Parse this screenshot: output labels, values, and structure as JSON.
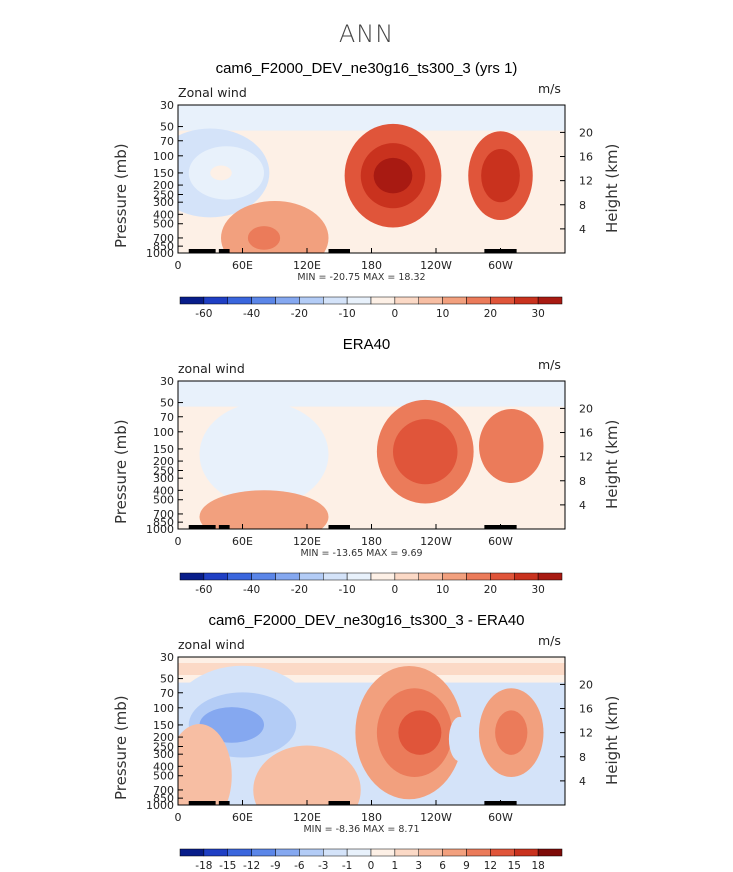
{
  "suptitle": "ANN",
  "colors": {
    "blue9": "#081d8a",
    "blue8": "#1f3fc4",
    "blue7": "#3a66dd",
    "blue6": "#5b86e8",
    "blue5": "#85a8f0",
    "blue4": "#b3ccf6",
    "blue3": "#d4e3f9",
    "blue2": "#e8f1fb",
    "neutral": "#fdf0e6",
    "red1": "#fbd9c6",
    "red2": "#f7bea3",
    "red3": "#f2a07e",
    "red4": "#eb7b5a",
    "red5": "#e0553a",
    "red6": "#c9321e",
    "red7": "#a81a12",
    "red8": "#7e0b08"
  },
  "chart_data": [
    {
      "type": "heatmap",
      "title": "cam6_F2000_DEV_ne30g16_ts300_3 (yrs 1)",
      "left_label": "Zonal wind",
      "right_label": "m/s",
      "ylabel": "Pressure (mb)",
      "ylabel2": "Height (km)",
      "y_ticks": [
        "30",
        "50",
        "70",
        "100",
        "150",
        "200",
        "250",
        "300",
        "400",
        "500",
        "700",
        "850",
        "1000"
      ],
      "y2_ticks": [
        "20",
        "16",
        "12",
        "8",
        "4"
      ],
      "x_ticks": [
        "0",
        "60E",
        "120E",
        "180",
        "120W",
        "60W"
      ],
      "min": "-20.75",
      "max": "18.32",
      "minmax_text": "MIN = -20.75   MAX =  18.32",
      "colorbar_labels": [
        "-60",
        "-40",
        "-20",
        "-10",
        "0",
        "10",
        "20",
        "30"
      ],
      "fields": [
        {
          "lon": 30,
          "p": 150,
          "rx": 55,
          "ry": 0.3,
          "v": 6
        },
        {
          "lon": 45,
          "p": 150,
          "rx": 35,
          "ry": 0.18,
          "v": 7
        },
        {
          "lon": 40,
          "p": 150,
          "rx": 10,
          "ry": 0.05,
          "v": 8
        },
        {
          "lon": 200,
          "p": 160,
          "rx": 45,
          "ry": 0.35,
          "v": 13
        },
        {
          "lon": 200,
          "p": 160,
          "rx": 30,
          "ry": 0.22,
          "v": 14
        },
        {
          "lon": 200,
          "p": 160,
          "rx": 18,
          "ry": 0.12,
          "v": 15
        },
        {
          "lon": 300,
          "p": 160,
          "rx": 30,
          "ry": 0.3,
          "v": 13
        },
        {
          "lon": 300,
          "p": 160,
          "rx": 18,
          "ry": 0.18,
          "v": 14
        },
        {
          "lon": 90,
          "p": 700,
          "rx": 50,
          "ry": 0.25,
          "v": 11
        },
        {
          "lon": 80,
          "p": 700,
          "rx": 15,
          "ry": 0.08,
          "v": 12
        }
      ]
    },
    {
      "type": "heatmap",
      "title": "ERA40",
      "left_label": "zonal wind",
      "right_label": "m/s",
      "ylabel": "Pressure (mb)",
      "ylabel2": "Height (km)",
      "y_ticks": [
        "30",
        "50",
        "70",
        "100",
        "150",
        "200",
        "250",
        "300",
        "400",
        "500",
        "700",
        "850",
        "1000"
      ],
      "y2_ticks": [
        "20",
        "16",
        "12",
        "8",
        "4"
      ],
      "x_ticks": [
        "0",
        "60E",
        "120E",
        "180",
        "120W",
        "60W"
      ],
      "min": "-13.65",
      "max": "9.69",
      "minmax_text": "MIN = -13.65   MAX =   9.69",
      "colorbar_labels": [
        "-60",
        "-40",
        "-20",
        "-10",
        "0",
        "10",
        "20",
        "30"
      ],
      "fields": [
        {
          "lon": 80,
          "p": 170,
          "rx": 60,
          "ry": 0.35,
          "v": 7
        },
        {
          "lon": 230,
          "p": 160,
          "rx": 45,
          "ry": 0.35,
          "v": 12
        },
        {
          "lon": 230,
          "p": 160,
          "rx": 30,
          "ry": 0.22,
          "v": 13
        },
        {
          "lon": 310,
          "p": 140,
          "rx": 30,
          "ry": 0.25,
          "v": 12
        },
        {
          "lon": 80,
          "p": 750,
          "rx": 60,
          "ry": 0.18,
          "v": 11
        }
      ]
    },
    {
      "type": "heatmap",
      "title": "cam6_F2000_DEV_ne30g16_ts300_3 - ERA40",
      "left_label": "zonal wind",
      "right_label": "m/s",
      "ylabel": "Pressure (mb)",
      "ylabel2": "Height (km)",
      "y_ticks": [
        "30",
        "50",
        "70",
        "100",
        "150",
        "200",
        "250",
        "300",
        "400",
        "500",
        "700",
        "850",
        "1000"
      ],
      "y2_ticks": [
        "20",
        "16",
        "12",
        "8",
        "4"
      ],
      "x_ticks": [
        "0",
        "60E",
        "120E",
        "180",
        "120W",
        "60W"
      ],
      "min": "-8.36",
      "max": "8.71",
      "minmax_text": "MIN =  -8.36   MAX =   8.71",
      "colorbar_labels": [
        "-18",
        "-15",
        "-12",
        "-9",
        "-6",
        "-3",
        "-1",
        "0",
        "1",
        "3",
        "6",
        "9",
        "12",
        "15",
        "18"
      ],
      "fields": [
        {
          "lon": 60,
          "p": 150,
          "rx": 70,
          "ry": 0.4,
          "v": 6
        },
        {
          "lon": 60,
          "p": 150,
          "rx": 50,
          "ry": 0.22,
          "v": 5
        },
        {
          "lon": 50,
          "p": 150,
          "rx": 30,
          "ry": 0.12,
          "v": 4
        },
        {
          "lon": 215,
          "p": 180,
          "rx": 50,
          "ry": 0.45,
          "v": 11
        },
        {
          "lon": 220,
          "p": 180,
          "rx": 35,
          "ry": 0.3,
          "v": 12
        },
        {
          "lon": 225,
          "p": 180,
          "rx": 20,
          "ry": 0.15,
          "v": 13
        },
        {
          "lon": 310,
          "p": 180,
          "rx": 30,
          "ry": 0.3,
          "v": 11
        },
        {
          "lon": 310,
          "p": 180,
          "rx": 15,
          "ry": 0.15,
          "v": 12
        },
        {
          "lon": 262,
          "p": 210,
          "rx": 10,
          "ry": 0.15,
          "v": 6
        },
        {
          "lon": 20,
          "p": 500,
          "rx": 30,
          "ry": 0.35,
          "v": 10
        },
        {
          "lon": 120,
          "p": 700,
          "rx": 50,
          "ry": 0.3,
          "v": 10
        }
      ]
    }
  ]
}
